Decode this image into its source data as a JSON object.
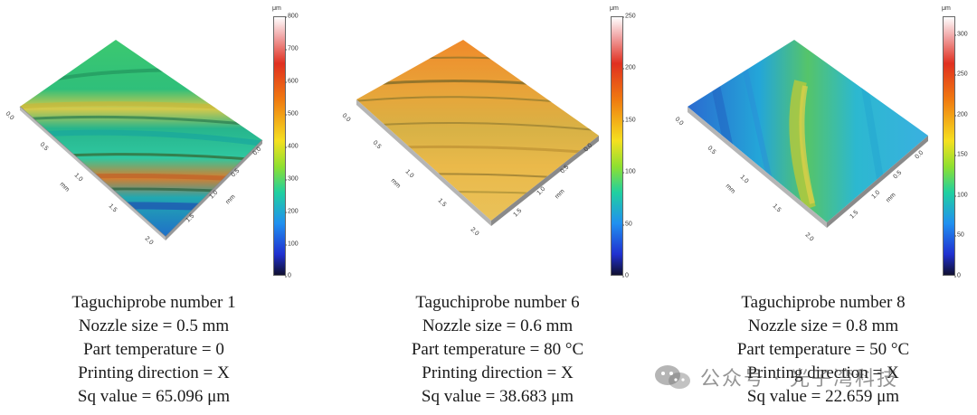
{
  "panels": [
    {
      "title": "Taguchiprobe number 1",
      "nozzle": "Nozzle size = 0.5 mm",
      "temperature": "Part temperature = 0",
      "direction": "Printing direction = X",
      "sq": "Sq value = 65.096 μm",
      "scale": {
        "unit": "μm",
        "ticks": [
          "800",
          "700",
          "600",
          "500",
          "400",
          "300",
          "200",
          "100",
          "0"
        ]
      },
      "axis": {
        "left": [
          "0.0",
          "0.5",
          "1.0",
          "1.5",
          "2.0"
        ],
        "right": [
          "1.5",
          "1.0",
          "0.5",
          "0.0"
        ],
        "unit": "mm"
      }
    },
    {
      "title": "Taguchiprobe number 6",
      "nozzle": "Nozzle size = 0.6 mm",
      "temperature": "Part temperature = 80 °C",
      "direction": "Printing direction = X",
      "sq": "Sq value = 38.683 μm",
      "scale": {
        "unit": "μm",
        "ticks": [
          "250",
          "200",
          "150",
          "100",
          "50",
          "0"
        ]
      },
      "axis": {
        "left": [
          "0.0",
          "0.5",
          "1.0",
          "1.5",
          "2.0"
        ],
        "right": [
          "1.5",
          "1.0",
          "0.5",
          "0.0"
        ],
        "unit": "mm"
      }
    },
    {
      "title": "Taguchiprobe number 8",
      "nozzle": "Nozzle size = 0.8 mm",
      "temperature": "Part temperature = 50 °C",
      "direction": "Printing direction = X",
      "sq": "Sq value = 22.659 μm",
      "scale": {
        "unit": "μm",
        "ticks": [
          "300",
          "250",
          "200",
          "150",
          "100",
          "50",
          "0"
        ]
      },
      "axis": {
        "left": [
          "0.0",
          "0.5",
          "1.0",
          "1.5",
          "2.0"
        ],
        "right": [
          "1.5",
          "1.0",
          "0.5",
          "0.0"
        ],
        "unit": "mm"
      }
    }
  ],
  "watermark": "公众号 · 光子湾科技"
}
